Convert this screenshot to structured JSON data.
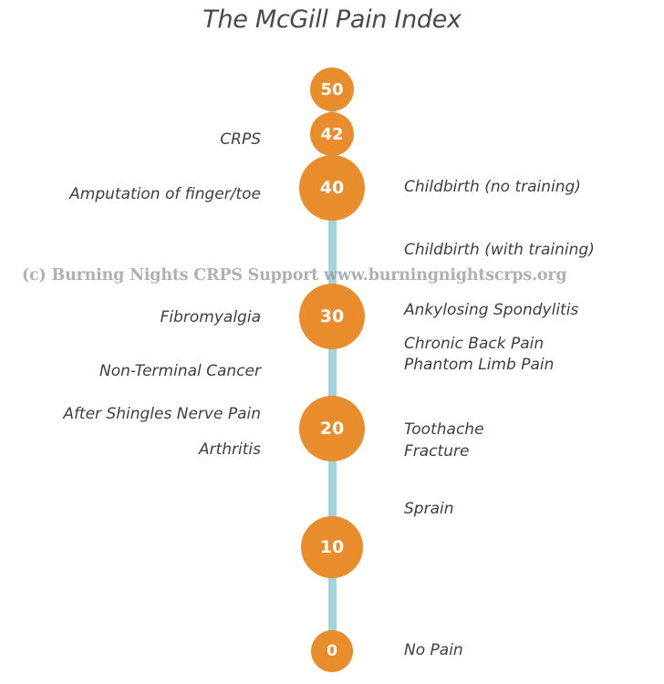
{
  "title": "The McGill Pain Index",
  "watermark": "(c) Burning Nights CRPS Support  www.burningnightscrps.org",
  "colors": {
    "marker": "#e98c2c",
    "axis": "#a3d4da",
    "text": "#3f3f3f"
  },
  "markers": [
    {
      "id": "50",
      "label": "50"
    },
    {
      "id": "42",
      "label": "42"
    },
    {
      "id": "40",
      "label": "40"
    },
    {
      "id": "30",
      "label": "30"
    },
    {
      "id": "20",
      "label": "20"
    },
    {
      "id": "10",
      "label": "10"
    },
    {
      "id": "0",
      "label": "0"
    }
  ],
  "left_labels": {
    "crps": "CRPS",
    "amputation": "Amputation of finger/toe",
    "fibromyalgia": "Fibromyalgia",
    "cancer": "Non-Terminal Cancer",
    "shingles": "After Shingles Nerve Pain",
    "arthritis": "Arthritis"
  },
  "right_labels": {
    "childbirth_no_training": "Childbirth (no training)",
    "childbirth_training": "Childbirth (with training)",
    "ankylosing": "Ankylosing Spondylitis",
    "back_pain": "Chronic Back Pain",
    "phantom": "Phantom Limb Pain",
    "toothache": "Toothache",
    "fracture": "Fracture",
    "sprain": "Sprain",
    "no_pain": "No Pain"
  }
}
